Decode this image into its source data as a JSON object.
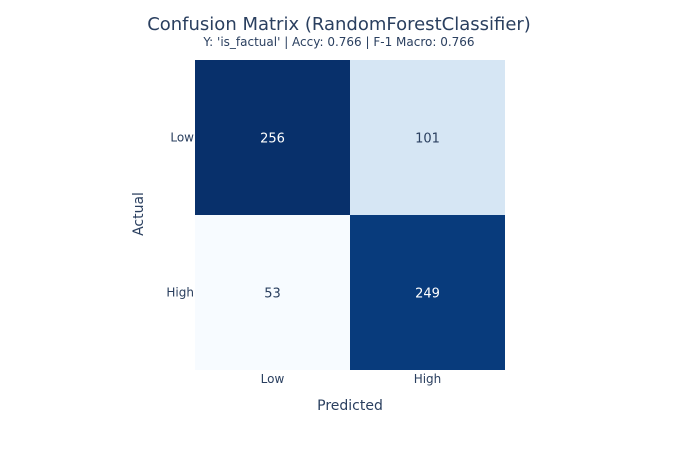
{
  "chart_data": {
    "type": "heatmap",
    "title": "Confusion Matrix (RandomForestClassifier)",
    "subtitle": "Y: 'is_factual' | Accy: 0.766 | F-1 Macro: 0.766",
    "xlabel": "Predicted",
    "ylabel": "Actual",
    "x_categories": [
      "Low",
      "High"
    ],
    "y_categories": [
      "Low",
      "High"
    ],
    "values": [
      [
        256,
        101
      ],
      [
        53,
        249
      ]
    ],
    "colorscale": "Blues",
    "colors": {
      "title": "#2a3f5f",
      "low": "#f7fbff",
      "mid": "#c6dbef",
      "high": "#08306b",
      "text_dark": "#2a3f5f",
      "text_light": "#ffffff"
    }
  }
}
